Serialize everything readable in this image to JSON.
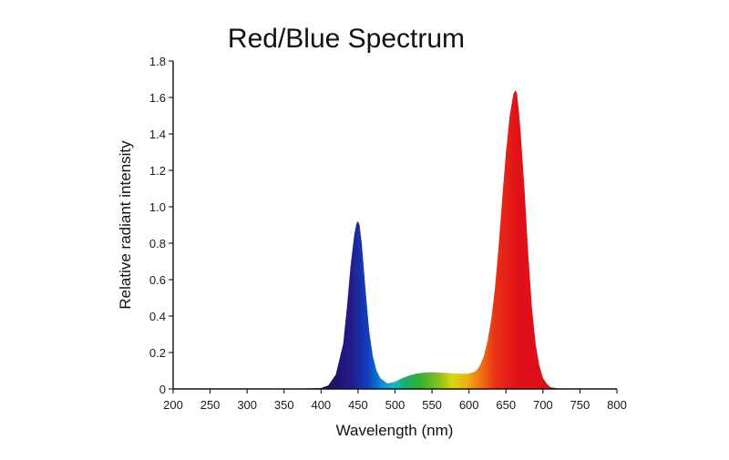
{
  "chart_data": {
    "type": "area",
    "title": "Red/Blue Spectrum",
    "xlabel": "Wavelength (nm)",
    "ylabel": "Relative radiant intensity",
    "xlim": [
      200,
      800
    ],
    "ylim": [
      0,
      1.8
    ],
    "xticks": [
      200,
      250,
      300,
      350,
      400,
      450,
      500,
      550,
      600,
      650,
      700,
      750,
      800
    ],
    "yticks": [
      0,
      0.2,
      0.4,
      0.6,
      0.8,
      1.0,
      1.2,
      1.4,
      1.6,
      1.8
    ],
    "ytick_labels": [
      "0",
      "0.2",
      "0.4",
      "0.6",
      "0.8",
      "1.0",
      "1.2",
      "1.4",
      "1.6",
      "1.8"
    ],
    "grid": false,
    "fill": "visible-spectrum gradient",
    "series": [
      {
        "x": [
          200,
          350,
          400,
          410,
          420,
          430,
          435,
          440,
          445,
          448,
          450,
          452,
          455,
          460,
          465,
          470,
          475,
          480,
          490,
          500,
          510,
          520,
          530,
          540,
          550,
          560,
          570,
          580,
          590,
          600,
          605,
          610,
          615,
          620,
          625,
          630,
          635,
          640,
          645,
          650,
          655,
          660,
          663,
          665,
          668,
          670,
          675,
          680,
          685,
          690,
          695,
          700,
          705,
          710,
          720,
          800
        ],
        "y": [
          0,
          0,
          0.005,
          0.02,
          0.08,
          0.25,
          0.45,
          0.68,
          0.85,
          0.91,
          0.92,
          0.9,
          0.8,
          0.55,
          0.32,
          0.18,
          0.1,
          0.06,
          0.03,
          0.04,
          0.06,
          0.075,
          0.085,
          0.09,
          0.092,
          0.09,
          0.088,
          0.085,
          0.083,
          0.085,
          0.09,
          0.1,
          0.13,
          0.18,
          0.26,
          0.38,
          0.55,
          0.78,
          1.05,
          1.3,
          1.5,
          1.62,
          1.64,
          1.62,
          1.5,
          1.4,
          1.1,
          0.75,
          0.45,
          0.25,
          0.13,
          0.06,
          0.03,
          0.01,
          0.003,
          0
        ]
      }
    ]
  }
}
